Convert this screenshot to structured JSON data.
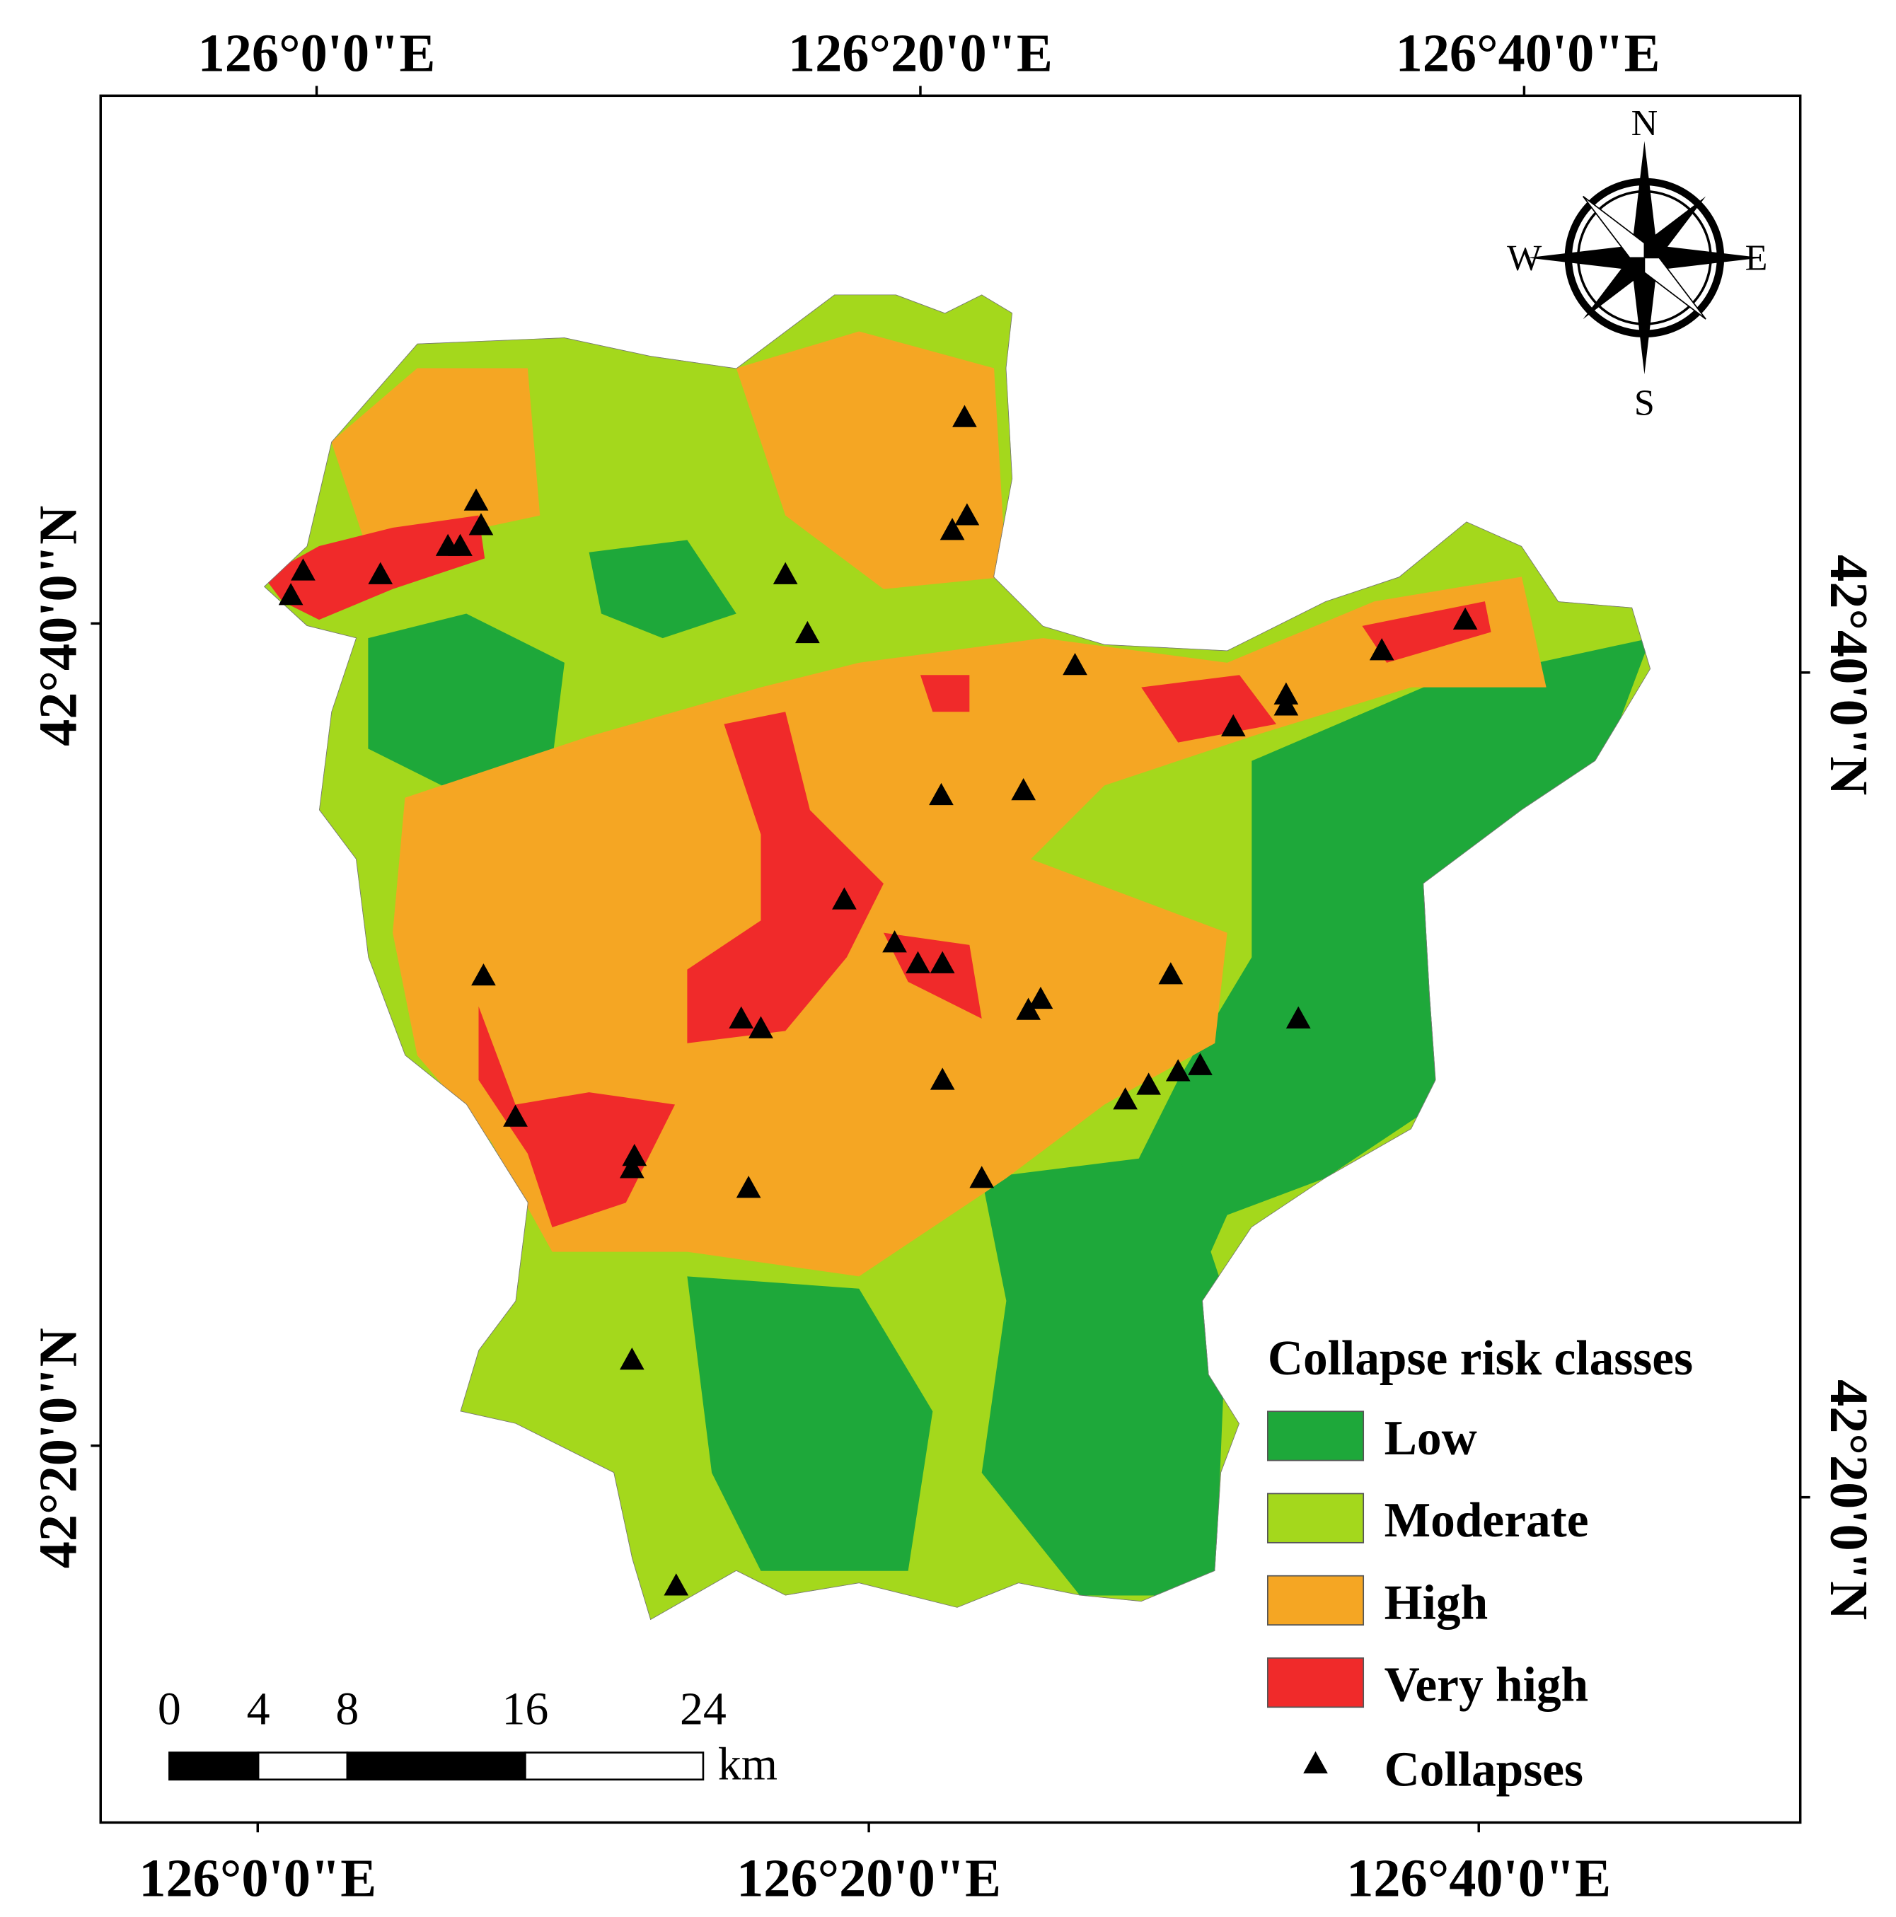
{
  "map": {
    "lon_labels_top": [
      "126°0'0\"E",
      "126°20'0\"E",
      "126°40'0\"E"
    ],
    "lon_labels_bottom": [
      "126°0'0\"E",
      "126°20'0\"E",
      "126°40'0\"E"
    ],
    "lat_labels_left": [
      "42°40'0\"N",
      "42°20'0\"N"
    ],
    "lat_labels_right": [
      "42°40'0\"N",
      "42°20'0\"N"
    ],
    "compass": {
      "north": "N",
      "south": "S",
      "east": "E",
      "west": "W"
    },
    "legend": {
      "title": "Collapse risk classes",
      "classes": [
        {
          "name": "Low",
          "color": "#1ea83a"
        },
        {
          "name": "Moderate",
          "color": "#a4d81c"
        },
        {
          "name": "High",
          "color": "#f5a623"
        },
        {
          "name": "Very high",
          "color": "#f02a2a"
        }
      ],
      "points": {
        "name": "Collapses",
        "color": "#000000"
      }
    },
    "scale_bar": {
      "ticks": [
        0,
        4,
        8,
        16,
        24
      ],
      "unit": "km"
    }
  }
}
